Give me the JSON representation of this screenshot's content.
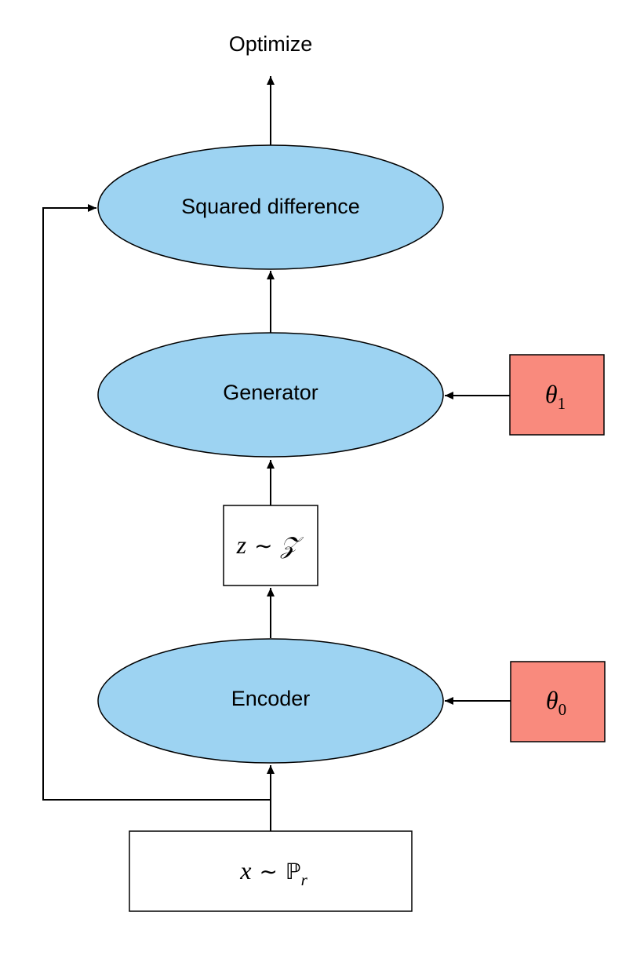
{
  "colors": {
    "process_fill": "#9dd3f2",
    "param_fill": "#f98a7d",
    "data_fill": "#ffffff",
    "stroke": "#000000",
    "background": "#ffffff"
  },
  "nodes": {
    "optimize": {
      "text": "Optimize"
    },
    "squared_difference": {
      "text": "Squared difference"
    },
    "generator": {
      "text": "Generator"
    },
    "encoder": {
      "text": "Encoder"
    },
    "theta1": {
      "symbol": "θ",
      "subscript": "1"
    },
    "theta0": {
      "symbol": "θ",
      "subscript": "0"
    },
    "latent": {
      "var": "z",
      "op": "∼",
      "dist": "𝒵"
    },
    "input": {
      "var": "x",
      "op": "∼",
      "dist": "ℙ",
      "subscript": "r"
    }
  },
  "edges": [
    {
      "from": "input",
      "to": "encoder"
    },
    {
      "from": "input",
      "to": "squared_difference"
    },
    {
      "from": "theta0",
      "to": "encoder"
    },
    {
      "from": "encoder",
      "to": "latent"
    },
    {
      "from": "latent",
      "to": "generator"
    },
    {
      "from": "theta1",
      "to": "generator"
    },
    {
      "from": "generator",
      "to": "squared_difference"
    },
    {
      "from": "squared_difference",
      "to": "optimize"
    }
  ]
}
